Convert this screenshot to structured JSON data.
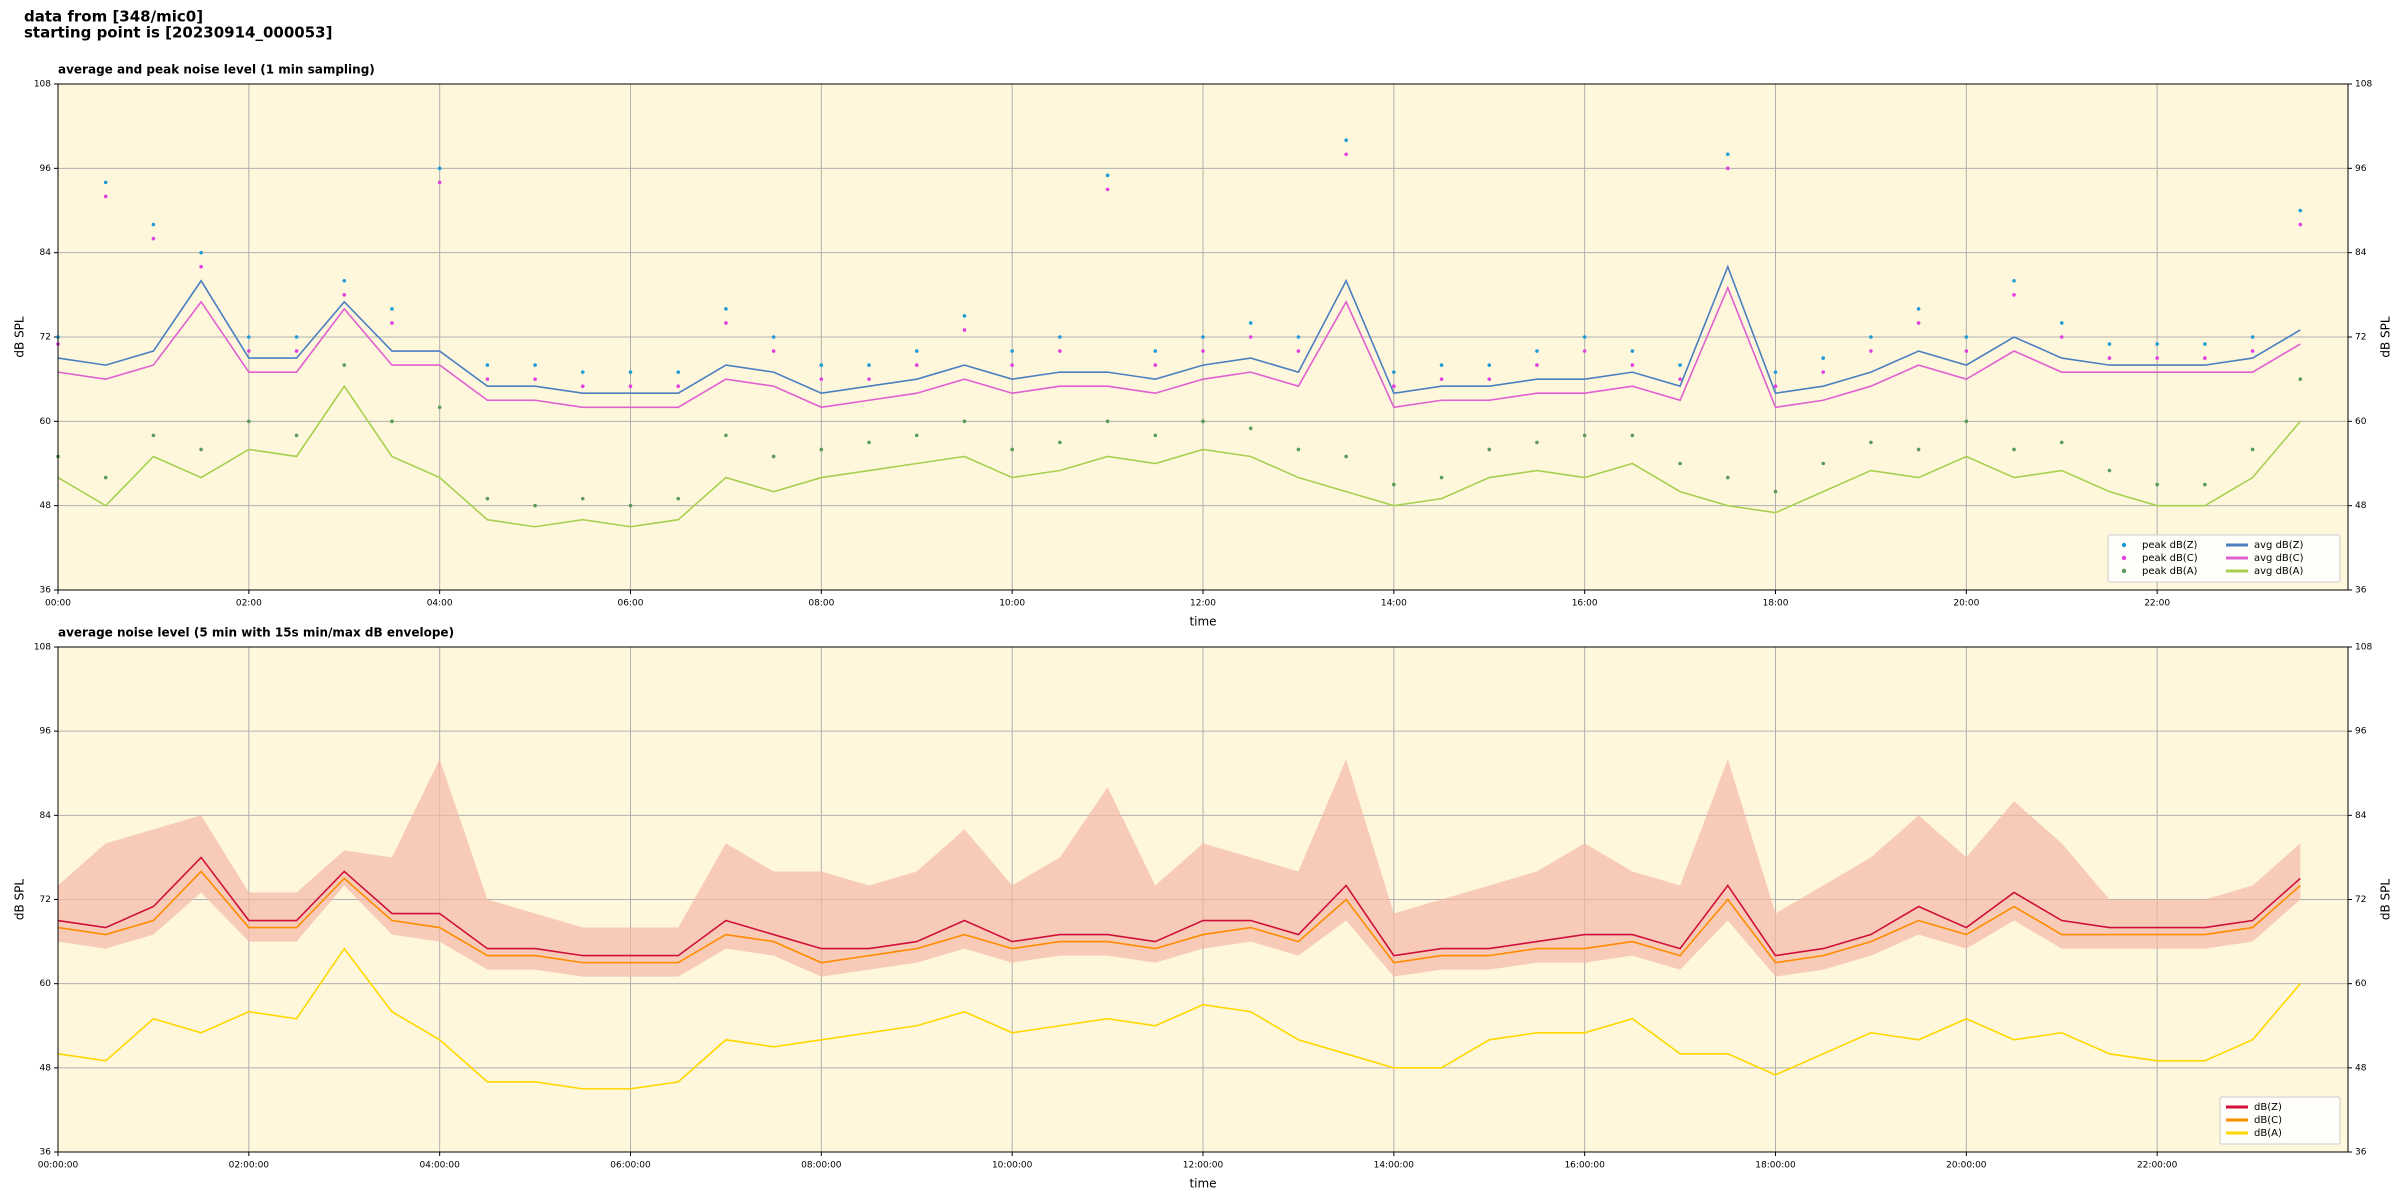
{
  "suptitle": [
    "data from [348/mic0]",
    "starting point is [20230914_000053]"
  ],
  "chart_data": [
    {
      "type": "line",
      "title": "average and peak noise level (1 min sampling)",
      "xlabel": "time",
      "ylabel": "dB SPL",
      "x": [
        0,
        0.5,
        1,
        1.5,
        2,
        2.5,
        3,
        3.5,
        4,
        4.5,
        5,
        5.5,
        6,
        6.5,
        7,
        7.5,
        8,
        8.5,
        9,
        9.5,
        10,
        10.5,
        11,
        11.5,
        12,
        12.5,
        13,
        13.5,
        14,
        14.5,
        15,
        15.5,
        16,
        16.5,
        17,
        17.5,
        18,
        18.5,
        19,
        19.5,
        20,
        20.5,
        21,
        21.5,
        22,
        22.5,
        23,
        23.5
      ],
      "xlim": [
        0,
        24
      ],
      "xticks": [
        {
          "value": 0,
          "label": "00:00"
        },
        {
          "value": 2,
          "label": "02:00"
        },
        {
          "value": 4,
          "label": "04:00"
        },
        {
          "value": 6,
          "label": "06:00"
        },
        {
          "value": 8,
          "label": "08:00"
        },
        {
          "value": 10,
          "label": "10:00"
        },
        {
          "value": 12,
          "label": "12:00"
        },
        {
          "value": 14,
          "label": "14:00"
        },
        {
          "value": 16,
          "label": "16:00"
        },
        {
          "value": 18,
          "label": "18:00"
        },
        {
          "value": 20,
          "label": "20:00"
        },
        {
          "value": 22,
          "label": "22:00"
        }
      ],
      "ylim": [
        36,
        108
      ],
      "yticks": [
        36,
        48,
        60,
        72,
        84,
        96,
        108
      ],
      "y2lim": [
        36,
        108
      ],
      "y2ticks": [
        36,
        48,
        60,
        72,
        84,
        96,
        108
      ],
      "grid": true,
      "legend": "lower right",
      "series": [
        {
          "name": "peak dB(Z)",
          "type": "scatter",
          "color": "#1f9bd6",
          "values": [
            72,
            94,
            88,
            84,
            72,
            72,
            80,
            76,
            96,
            68,
            68,
            67,
            67,
            67,
            76,
            72,
            68,
            68,
            70,
            75,
            70,
            72,
            95,
            70,
            72,
            74,
            72,
            100,
            67,
            68,
            68,
            70,
            72,
            70,
            68,
            98,
            67,
            69,
            72,
            76,
            72,
            80,
            74,
            71,
            71,
            71,
            72,
            90
          ]
        },
        {
          "name": "peak dB(C)",
          "type": "scatter",
          "color": "#e040e0",
          "values": [
            71,
            92,
            86,
            82,
            70,
            70,
            78,
            74,
            94,
            66,
            66,
            65,
            65,
            65,
            74,
            70,
            66,
            66,
            68,
            73,
            68,
            70,
            93,
            68,
            70,
            72,
            70,
            98,
            65,
            66,
            66,
            68,
            70,
            68,
            66,
            96,
            65,
            67,
            70,
            74,
            70,
            78,
            72,
            69,
            69,
            69,
            70,
            88
          ]
        },
        {
          "name": "peak dB(A)",
          "type": "scatter",
          "color": "#5a9a5a",
          "values": [
            55,
            52,
            58,
            56,
            60,
            58,
            68,
            60,
            62,
            49,
            48,
            49,
            48,
            49,
            58,
            55,
            56,
            57,
            58,
            60,
            56,
            57,
            60,
            58,
            60,
            59,
            56,
            55,
            51,
            52,
            56,
            57,
            58,
            58,
            54,
            52,
            50,
            54,
            57,
            56,
            60,
            56,
            57,
            53,
            51,
            51,
            56,
            66
          ]
        },
        {
          "name": "avg dB(Z)",
          "type": "line",
          "color": "#4a7fc0",
          "values": [
            69,
            68,
            70,
            80,
            69,
            69,
            77,
            70,
            70,
            65,
            65,
            64,
            64,
            64,
            68,
            67,
            64,
            65,
            66,
            68,
            66,
            67,
            67,
            66,
            68,
            69,
            67,
            80,
            64,
            65,
            65,
            66,
            66,
            67,
            65,
            82,
            64,
            65,
            67,
            70,
            68,
            72,
            69,
            68,
            68,
            68,
            69,
            73
          ]
        },
        {
          "name": "avg dB(C)",
          "type": "line",
          "color": "#e060d0",
          "values": [
            67,
            66,
            68,
            77,
            67,
            67,
            76,
            68,
            68,
            63,
            63,
            62,
            62,
            62,
            66,
            65,
            62,
            63,
            64,
            66,
            64,
            65,
            65,
            64,
            66,
            67,
            65,
            77,
            62,
            63,
            63,
            64,
            64,
            65,
            63,
            79,
            62,
            63,
            65,
            68,
            66,
            70,
            67,
            67,
            67,
            67,
            67,
            71
          ]
        },
        {
          "name": "avg dB(A)",
          "type": "line",
          "color": "#a8d050",
          "values": [
            52,
            48,
            55,
            52,
            56,
            55,
            65,
            55,
            52,
            46,
            45,
            46,
            45,
            46,
            52,
            50,
            52,
            53,
            54,
            55,
            52,
            53,
            55,
            54,
            56,
            55,
            52,
            50,
            48,
            49,
            52,
            53,
            52,
            54,
            50,
            48,
            47,
            50,
            53,
            52,
            55,
            52,
            53,
            50,
            48,
            48,
            52,
            60
          ]
        }
      ]
    },
    {
      "type": "line",
      "title": "average noise level (5 min with 15s min/max dB envelope)",
      "xlabel": "time",
      "ylabel": "dB SPL",
      "x": [
        0,
        0.5,
        1,
        1.5,
        2,
        2.5,
        3,
        3.5,
        4,
        4.5,
        5,
        5.5,
        6,
        6.5,
        7,
        7.5,
        8,
        8.5,
        9,
        9.5,
        10,
        10.5,
        11,
        11.5,
        12,
        12.5,
        13,
        13.5,
        14,
        14.5,
        15,
        15.5,
        16,
        16.5,
        17,
        17.5,
        18,
        18.5,
        19,
        19.5,
        20,
        20.5,
        21,
        21.5,
        22,
        22.5,
        23,
        23.5
      ],
      "xlim": [
        0,
        24
      ],
      "xticks": [
        {
          "value": 0,
          "label": "00:00:00"
        },
        {
          "value": 2,
          "label": "02:00:00"
        },
        {
          "value": 4,
          "label": "04:00:00"
        },
        {
          "value": 6,
          "label": "06:00:00"
        },
        {
          "value": 8,
          "label": "08:00:00"
        },
        {
          "value": 10,
          "label": "10:00:00"
        },
        {
          "value": 12,
          "label": "12:00:00"
        },
        {
          "value": 14,
          "label": "14:00:00"
        },
        {
          "value": 16,
          "label": "16:00:00"
        },
        {
          "value": 18,
          "label": "18:00:00"
        },
        {
          "value": 20,
          "label": "20:00:00"
        },
        {
          "value": 22,
          "label": "22:00:00"
        }
      ],
      "ylim": [
        36,
        108
      ],
      "yticks": [
        36,
        48,
        60,
        72,
        84,
        96,
        108
      ],
      "y2lim": [
        36,
        108
      ],
      "y2ticks": [
        36,
        48,
        60,
        72,
        84,
        96,
        108
      ],
      "grid": true,
      "legend": "lower right",
      "band": {
        "color": "#f4b8a8",
        "low": [
          66,
          65,
          67,
          73,
          66,
          66,
          74,
          67,
          66,
          62,
          62,
          61,
          61,
          61,
          65,
          64,
          61,
          62,
          63,
          65,
          63,
          64,
          64,
          63,
          65,
          66,
          64,
          69,
          61,
          62,
          62,
          63,
          63,
          64,
          62,
          69,
          61,
          62,
          64,
          67,
          65,
          69,
          65,
          65,
          65,
          65,
          66,
          72
        ],
        "high": [
          74,
          80,
          82,
          84,
          73,
          73,
          79,
          78,
          92,
          72,
          70,
          68,
          68,
          68,
          80,
          76,
          76,
          74,
          76,
          82,
          74,
          78,
          88,
          74,
          80,
          78,
          76,
          92,
          70,
          72,
          74,
          76,
          80,
          76,
          74,
          92,
          70,
          74,
          78,
          84,
          78,
          86,
          80,
          72,
          72,
          72,
          74,
          80
        ]
      },
      "series": [
        {
          "name": "dB(Z)",
          "type": "line",
          "color": "#d0103a",
          "values": [
            69,
            68,
            71,
            78,
            69,
            69,
            76,
            70,
            70,
            65,
            65,
            64,
            64,
            64,
            69,
            67,
            65,
            65,
            66,
            69,
            66,
            67,
            67,
            66,
            69,
            69,
            67,
            74,
            64,
            65,
            65,
            66,
            67,
            67,
            65,
            74,
            64,
            65,
            67,
            71,
            68,
            73,
            69,
            68,
            68,
            68,
            69,
            75
          ]
        },
        {
          "name": "dB(C)",
          "type": "line",
          "color": "#ff8c00",
          "values": [
            68,
            67,
            69,
            76,
            68,
            68,
            75,
            69,
            68,
            64,
            64,
            63,
            63,
            63,
            67,
            66,
            63,
            64,
            65,
            67,
            65,
            66,
            66,
            65,
            67,
            68,
            66,
            72,
            63,
            64,
            64,
            65,
            65,
            66,
            64,
            72,
            63,
            64,
            66,
            69,
            67,
            71,
            67,
            67,
            67,
            67,
            68,
            74
          ]
        },
        {
          "name": "dB(A)",
          "type": "line",
          "color": "#ffd700",
          "values": [
            50,
            49,
            55,
            53,
            56,
            55,
            65,
            56,
            52,
            46,
            46,
            45,
            45,
            46,
            52,
            51,
            52,
            53,
            54,
            56,
            53,
            54,
            55,
            54,
            57,
            56,
            52,
            50,
            48,
            48,
            52,
            53,
            53,
            55,
            50,
            50,
            47,
            50,
            53,
            52,
            55,
            52,
            53,
            50,
            49,
            49,
            52,
            60
          ]
        }
      ]
    }
  ]
}
